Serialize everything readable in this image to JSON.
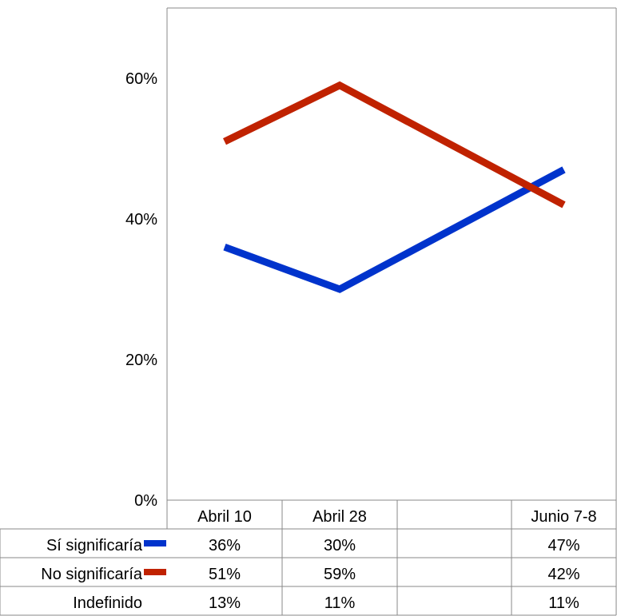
{
  "chart_data": {
    "type": "line",
    "title": "",
    "xlabel": "",
    "ylabel": "",
    "categories": [
      "Abril 10",
      "Abril 28",
      "",
      "Junio 7-8"
    ],
    "y_ticks": [
      "0%",
      "20%",
      "40%",
      "60%"
    ],
    "ylim": [
      0,
      70
    ],
    "grid": false,
    "series": [
      {
        "name": "Sí significaría",
        "color": "#0033cc",
        "values": [
          36,
          30,
          null,
          47
        ],
        "labels": [
          "36%",
          "30%",
          "",
          "47%"
        ]
      },
      {
        "name": "No significaría",
        "color": "#c02200",
        "values": [
          51,
          59,
          null,
          42
        ],
        "labels": [
          "51%",
          "59%",
          "",
          "42%"
        ]
      }
    ],
    "table_rows": [
      {
        "name": "Indefinido",
        "labels": [
          "13%",
          "11%",
          "",
          "11%"
        ]
      }
    ]
  }
}
